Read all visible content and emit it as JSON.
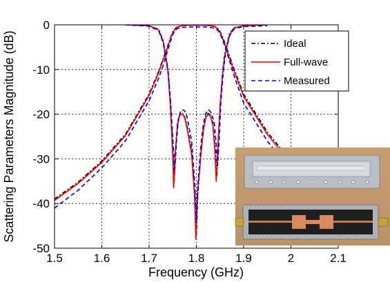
{
  "chart_data": {
    "type": "line",
    "title": "",
    "xlabel": "Frequency (GHz)",
    "ylabel": "Scattering Parameters Magnitude (dB)",
    "xlim": [
      1.5,
      2.1
    ],
    "ylim": [
      -50,
      0
    ],
    "xticks": [
      1.5,
      1.6,
      1.7,
      1.8,
      1.9,
      2.0,
      2.1
    ],
    "xtick_labels": [
      "1.5",
      "1.6",
      "1.7",
      "1.8",
      "1.9",
      "2",
      "2.1"
    ],
    "yticks": [
      0,
      -10,
      -20,
      -30,
      -40,
      -50
    ],
    "ytick_labels": [
      "0",
      "-10",
      "-20",
      "-30",
      "-40",
      "-50"
    ],
    "grid": true,
    "legend_position": "top-right",
    "series": [
      {
        "name": "Ideal",
        "color": "#000000",
        "style": "dash-dot",
        "curves": [
          [
            [
              1.5,
              -39.0
            ],
            [
              1.55,
              -35.2
            ],
            [
              1.6,
              -30.5
            ],
            [
              1.65,
              -24.5
            ],
            [
              1.7,
              -15.5
            ],
            [
              1.72,
              -10.5
            ],
            [
              1.73,
              -7.5
            ],
            [
              1.74,
              -4.5
            ],
            [
              1.745,
              -3.0
            ],
            [
              1.75,
              -1.6
            ],
            [
              1.755,
              -0.9
            ],
            [
              1.76,
              -0.4
            ],
            [
              1.77,
              -0.2
            ],
            [
              1.78,
              -0.1
            ],
            [
              1.79,
              -0.1
            ],
            [
              1.8,
              -0.1
            ],
            [
              1.81,
              -0.1
            ],
            [
              1.82,
              -0.1
            ],
            [
              1.83,
              -0.2
            ],
            [
              1.84,
              -0.4
            ],
            [
              1.845,
              -0.8
            ],
            [
              1.85,
              -1.5
            ],
            [
              1.855,
              -2.6
            ],
            [
              1.86,
              -4.0
            ],
            [
              1.87,
              -7.0
            ],
            [
              1.88,
              -10.0
            ],
            [
              1.9,
              -15.5
            ],
            [
              1.95,
              -24.0
            ],
            [
              2.0,
              -30.5
            ],
            [
              2.05,
              -35.0
            ],
            [
              2.1,
              -38.5
            ]
          ],
          [
            [
              1.65,
              0.0
            ],
            [
              1.7,
              -0.2
            ],
            [
              1.72,
              -1.0
            ],
            [
              1.73,
              -3.5
            ],
            [
              1.74,
              -10.0
            ],
            [
              1.745,
              -17.0
            ],
            [
              1.75,
              -27.0
            ],
            [
              1.753,
              -35.0
            ],
            [
              1.756,
              -28.0
            ],
            [
              1.76,
              -22.0
            ],
            [
              1.765,
              -20.0
            ],
            [
              1.77,
              -19.8
            ],
            [
              1.775,
              -20.5
            ],
            [
              1.78,
              -22.5
            ],
            [
              1.79,
              -28.0
            ],
            [
              1.797,
              -38.0
            ],
            [
              1.8,
              -47.0
            ],
            [
              1.803,
              -38.0
            ],
            [
              1.81,
              -28.0
            ],
            [
              1.815,
              -23.0
            ],
            [
              1.82,
              -20.5
            ],
            [
              1.825,
              -19.8
            ],
            [
              1.83,
              -20.3
            ],
            [
              1.835,
              -22.0
            ],
            [
              1.84,
              -28.0
            ],
            [
              1.843,
              -34.0
            ],
            [
              1.846,
              -28.0
            ],
            [
              1.85,
              -18.0
            ],
            [
              1.855,
              -11.0
            ],
            [
              1.86,
              -6.5
            ],
            [
              1.87,
              -2.0
            ],
            [
              1.88,
              -0.6
            ],
            [
              1.9,
              -0.2
            ],
            [
              1.95,
              0.0
            ]
          ]
        ]
      },
      {
        "name": "Full-wave",
        "color": "#ff0000",
        "style": "solid",
        "curves": [
          [
            [
              1.5,
              -39.3
            ],
            [
              1.55,
              -35.5
            ],
            [
              1.6,
              -30.8
            ],
            [
              1.65,
              -24.8
            ],
            [
              1.7,
              -15.8
            ],
            [
              1.72,
              -10.8
            ],
            [
              1.73,
              -7.8
            ],
            [
              1.74,
              -4.8
            ],
            [
              1.745,
              -3.2
            ],
            [
              1.75,
              -1.8
            ],
            [
              1.755,
              -1.0
            ],
            [
              1.76,
              -0.5
            ],
            [
              1.77,
              -0.2
            ],
            [
              1.78,
              -0.1
            ],
            [
              1.79,
              -0.1
            ],
            [
              1.8,
              -0.1
            ],
            [
              1.81,
              -0.1
            ],
            [
              1.82,
              -0.1
            ],
            [
              1.83,
              -0.2
            ],
            [
              1.84,
              -0.5
            ],
            [
              1.845,
              -0.9
            ],
            [
              1.85,
              -1.7
            ],
            [
              1.855,
              -2.9
            ],
            [
              1.86,
              -4.4
            ],
            [
              1.87,
              -7.5
            ],
            [
              1.88,
              -10.5
            ],
            [
              1.9,
              -16.0
            ],
            [
              1.95,
              -24.5
            ],
            [
              2.0,
              -31.0
            ],
            [
              2.05,
              -35.5
            ],
            [
              2.1,
              -39.0
            ]
          ],
          [
            [
              1.65,
              0.0
            ],
            [
              1.7,
              -0.2
            ],
            [
              1.72,
              -1.1
            ],
            [
              1.73,
              -3.8
            ],
            [
              1.74,
              -10.5
            ],
            [
              1.745,
              -18.0
            ],
            [
              1.75,
              -29.0
            ],
            [
              1.752,
              -36.5
            ],
            [
              1.755,
              -29.0
            ],
            [
              1.76,
              -22.5
            ],
            [
              1.765,
              -20.2
            ],
            [
              1.77,
              -19.9
            ],
            [
              1.775,
              -20.7
            ],
            [
              1.78,
              -23.0
            ],
            [
              1.79,
              -29.0
            ],
            [
              1.796,
              -38.0
            ],
            [
              1.799,
              -48.0
            ],
            [
              1.802,
              -38.0
            ],
            [
              1.81,
              -28.5
            ],
            [
              1.815,
              -23.5
            ],
            [
              1.82,
              -20.8
            ],
            [
              1.825,
              -20.0
            ],
            [
              1.83,
              -20.5
            ],
            [
              1.835,
              -22.5
            ],
            [
              1.839,
              -28.0
            ],
            [
              1.842,
              -35.0
            ],
            [
              1.845,
              -28.0
            ],
            [
              1.85,
              -18.5
            ],
            [
              1.855,
              -11.5
            ],
            [
              1.86,
              -7.0
            ],
            [
              1.87,
              -2.3
            ],
            [
              1.88,
              -0.7
            ],
            [
              1.9,
              -0.2
            ],
            [
              1.95,
              0.0
            ]
          ]
        ]
      },
      {
        "name": "Measured",
        "color": "#0000ff",
        "style": "dashed",
        "curves": [
          [
            [
              1.5,
              -41.0
            ],
            [
              1.55,
              -37.0
            ],
            [
              1.6,
              -32.0
            ],
            [
              1.65,
              -26.0
            ],
            [
              1.7,
              -17.0
            ],
            [
              1.72,
              -12.0
            ],
            [
              1.73,
              -9.0
            ],
            [
              1.74,
              -5.5
            ],
            [
              1.745,
              -3.8
            ],
            [
              1.75,
              -2.2
            ],
            [
              1.755,
              -1.3
            ],
            [
              1.76,
              -0.8
            ],
            [
              1.77,
              -0.6
            ],
            [
              1.78,
              -0.5
            ],
            [
              1.79,
              -0.5
            ],
            [
              1.8,
              -0.5
            ],
            [
              1.81,
              -0.5
            ],
            [
              1.82,
              -0.5
            ],
            [
              1.83,
              -0.6
            ],
            [
              1.84,
              -0.8
            ],
            [
              1.845,
              -1.2
            ],
            [
              1.85,
              -2.0
            ],
            [
              1.855,
              -3.2
            ],
            [
              1.86,
              -4.8
            ],
            [
              1.87,
              -8.0
            ],
            [
              1.88,
              -11.5
            ],
            [
              1.9,
              -17.5
            ],
            [
              1.95,
              -26.0
            ],
            [
              2.0,
              -32.5
            ],
            [
              2.05,
              -37.0
            ],
            [
              2.1,
              -40.5
            ]
          ],
          [
            [
              1.65,
              0.0
            ],
            [
              1.7,
              -0.3
            ],
            [
              1.72,
              -1.3
            ],
            [
              1.73,
              -4.0
            ],
            [
              1.74,
              -10.5
            ],
            [
              1.745,
              -16.5
            ],
            [
              1.75,
              -25.0
            ],
            [
              1.754,
              -33.0
            ],
            [
              1.758,
              -26.0
            ],
            [
              1.762,
              -21.0
            ],
            [
              1.768,
              -19.0
            ],
            [
              1.775,
              -19.2
            ],
            [
              1.78,
              -20.5
            ],
            [
              1.79,
              -26.0
            ],
            [
              1.797,
              -36.0
            ],
            [
              1.8,
              -44.0
            ],
            [
              1.803,
              -36.0
            ],
            [
              1.81,
              -26.5
            ],
            [
              1.815,
              -22.0
            ],
            [
              1.82,
              -19.8
            ],
            [
              1.826,
              -19.0
            ],
            [
              1.832,
              -19.8
            ],
            [
              1.838,
              -22.0
            ],
            [
              1.842,
              -27.0
            ],
            [
              1.845,
              -31.5
            ],
            [
              1.848,
              -26.0
            ],
            [
              1.852,
              -17.0
            ],
            [
              1.857,
              -10.5
            ],
            [
              1.862,
              -6.0
            ],
            [
              1.87,
              -2.5
            ],
            [
              1.88,
              -0.9
            ],
            [
              1.9,
              -0.4
            ],
            [
              1.95,
              -0.2
            ]
          ]
        ]
      }
    ]
  }
}
